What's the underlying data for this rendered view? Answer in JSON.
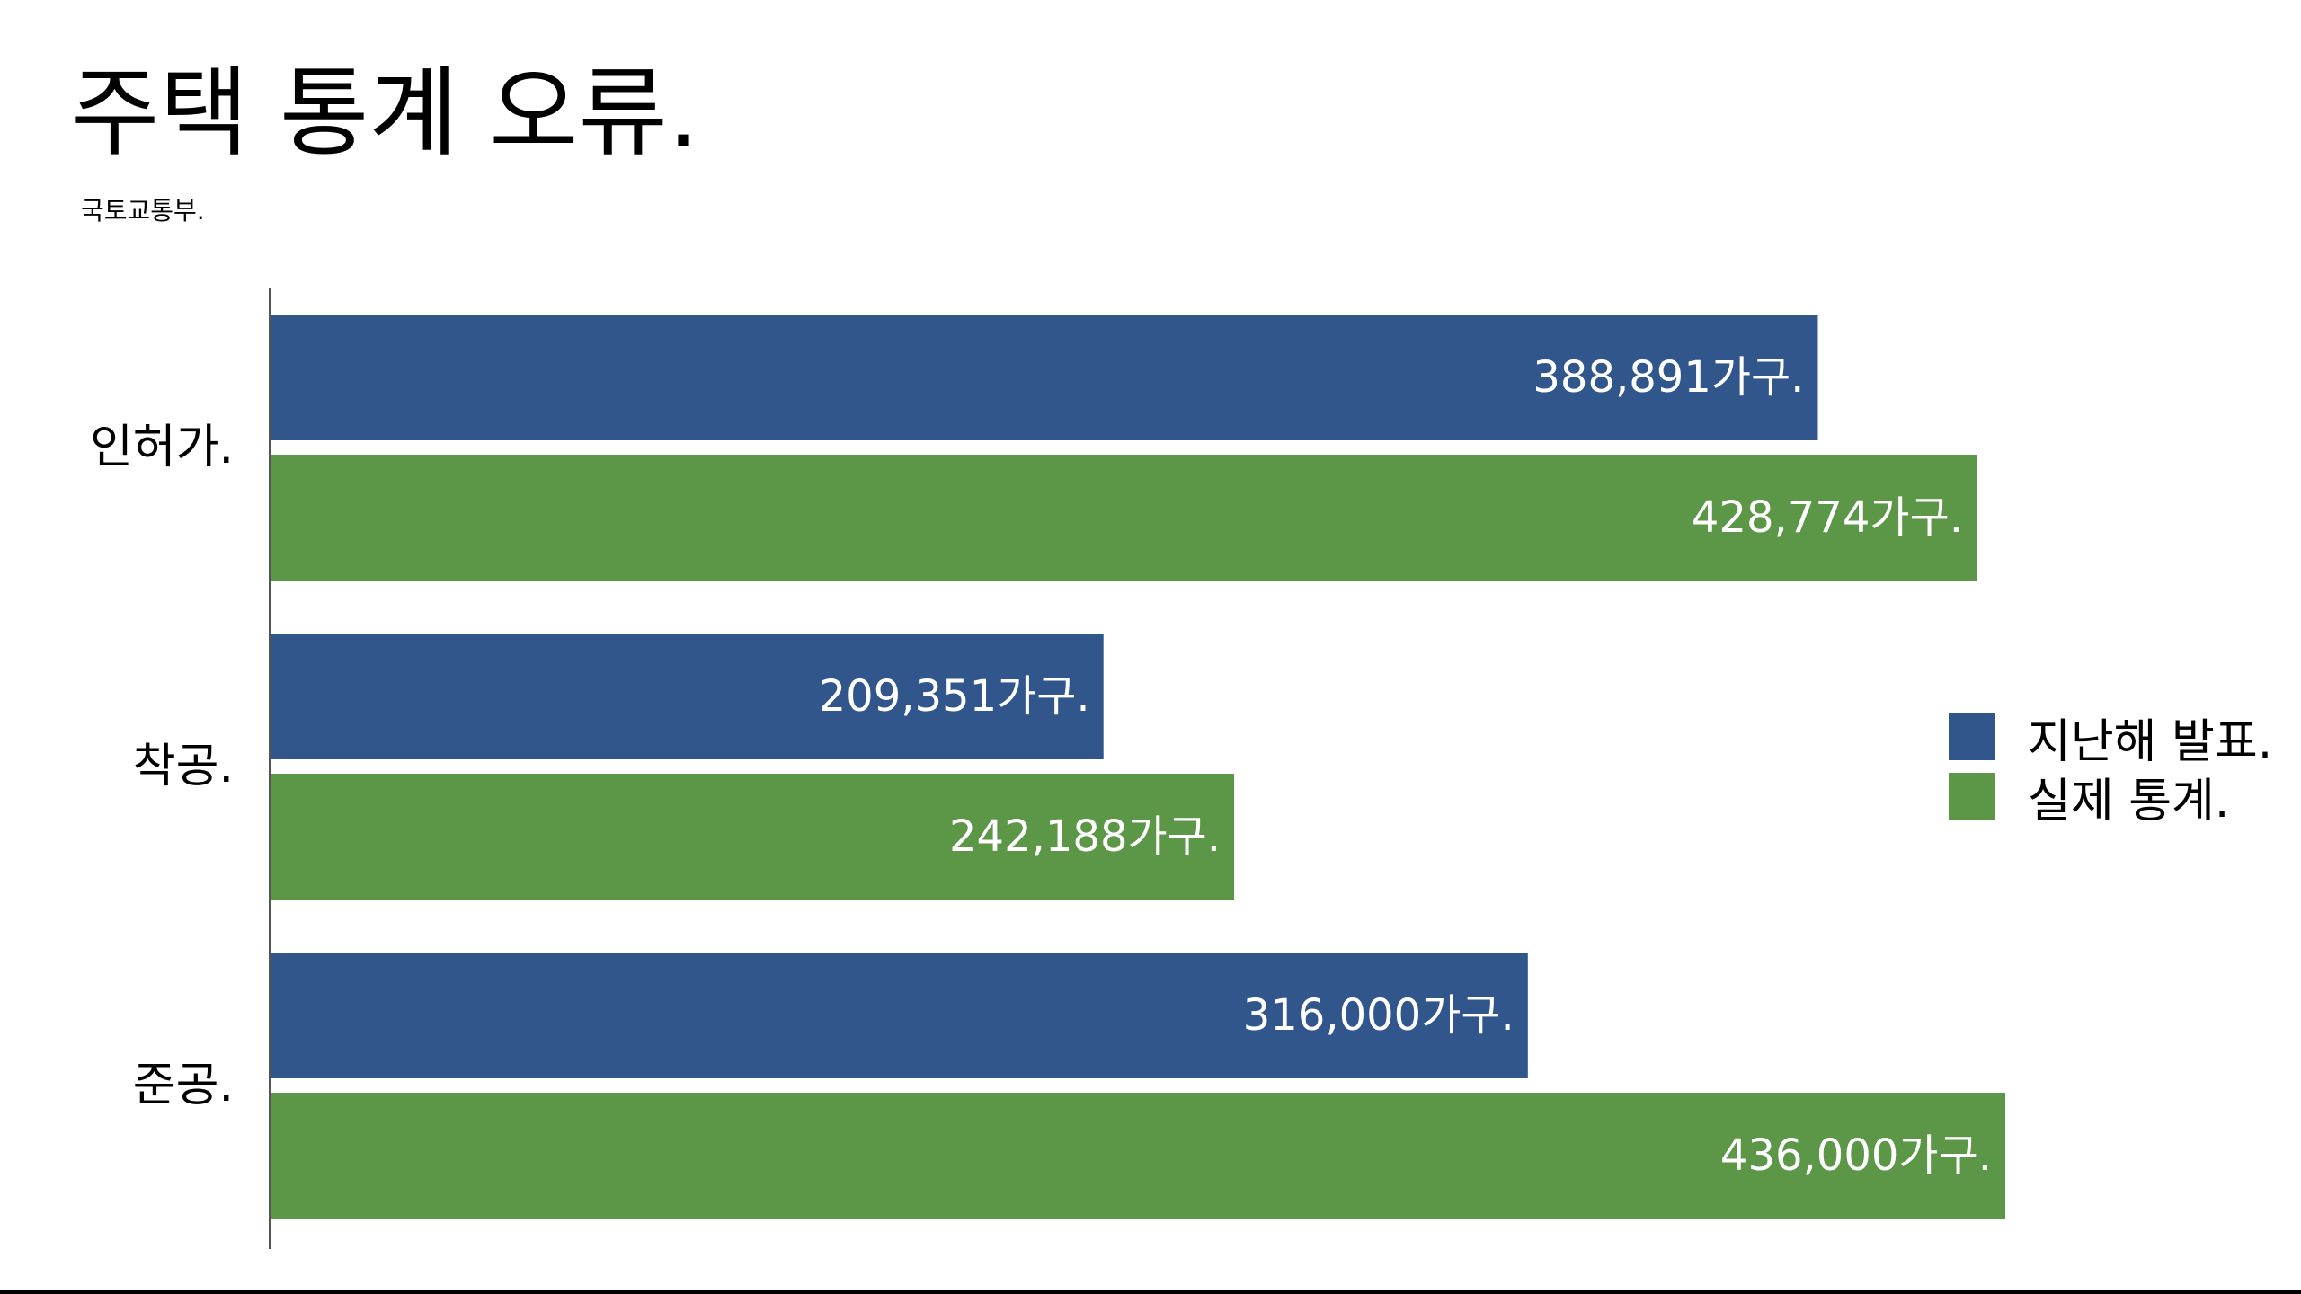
{
  "title": "주택 통계 오류.",
  "subtitle": "국토교통부.",
  "colors": {
    "announced": "#30568B",
    "actual": "#5C9647",
    "axis": "#555555",
    "bar_label": "#ffffff"
  },
  "chart_data": {
    "type": "bar",
    "orientation": "horizontal",
    "categories": [
      "인허가.",
      "착공.",
      "준공."
    ],
    "series": [
      {
        "name": "지난해 발표.",
        "values": [
          388891,
          209351,
          316000
        ],
        "labels": [
          "388,891가구.",
          "209,351가구.",
          "316,000가구."
        ]
      },
      {
        "name": "실제 통계.",
        "values": [
          428774,
          242188,
          436000
        ],
        "labels": [
          "428,774가구.",
          "242,188가구.",
          "436,000가구."
        ]
      }
    ],
    "xlim": [
      0,
      436000
    ],
    "grid": false,
    "legend_position": "right"
  }
}
